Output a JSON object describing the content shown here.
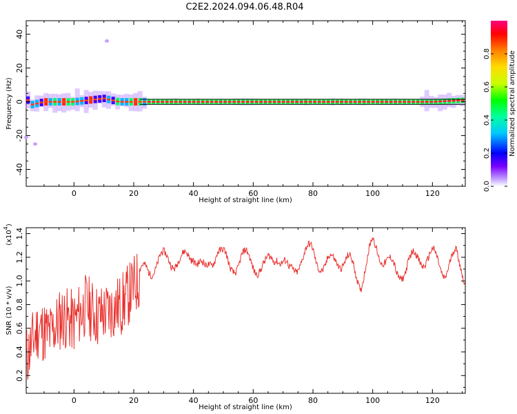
{
  "title": "C2E2.2024.094.06.48.R04",
  "colorbar": {
    "label": "Normalized spectral amplitude",
    "ticks": [
      "0.0",
      "0.2",
      "0.4",
      "0.6",
      "0.8"
    ],
    "tick_values": [
      0.0,
      0.2,
      0.4,
      0.6,
      0.8
    ],
    "range": [
      0,
      1
    ]
  },
  "chart_data": [
    {
      "type": "heatmap",
      "xlabel": "Height of straight line (km)",
      "ylabel": "Frequency (Hz)",
      "xlim": [
        -16,
        131
      ],
      "ylim": [
        -50,
        48
      ],
      "xticks": [
        0,
        20,
        40,
        60,
        80,
        100,
        120
      ],
      "yticks": [
        -40,
        -20,
        0,
        20,
        40
      ],
      "grid": false,
      "reference_lines_hz": [
        -1.5,
        1.5
      ],
      "ridge": {
        "description_values": "dominant frequency vs height",
        "x": [
          -15,
          -10,
          -5,
          0,
          5,
          10,
          15,
          20,
          30,
          60,
          90,
          120,
          131
        ],
        "frequency": [
          -2,
          0,
          0,
          0,
          1,
          2,
          0,
          0,
          0,
          0,
          0,
          0,
          1
        ]
      },
      "isolated_points": [
        {
          "x": 11,
          "frequency": 36
        },
        {
          "x": -16,
          "frequency": -21
        },
        {
          "x": -13,
          "frequency": -25
        }
      ]
    },
    {
      "type": "line",
      "xlabel": "Height of straight line (km)",
      "ylabel": "SNR (10 * v/v)",
      "ymultiplier": "(x10",
      "ymultiplier_exp": "4",
      "ymultiplier_close": ")",
      "xlim": [
        -16,
        131
      ],
      "ylim": [
        0.05,
        1.45
      ],
      "xticks": [
        0,
        20,
        40,
        60,
        80,
        100,
        120
      ],
      "yticks": [
        0.2,
        0.4,
        0.6,
        0.8,
        1.0,
        1.2,
        1.4
      ],
      "ytick_labels": [
        "0.2",
        "0.4",
        "0.6",
        "0.8",
        "1.0",
        "1.2",
        "1.4"
      ],
      "grid": false,
      "color": "#e8302c",
      "series": [
        {
          "x": [
            -16,
            -12,
            -8,
            -4,
            0,
            4,
            8,
            12,
            16,
            20,
            24,
            28,
            32,
            36,
            40,
            44,
            48,
            52,
            56,
            60,
            64,
            68,
            72,
            76,
            80,
            84,
            88,
            92,
            96,
            100,
            104,
            108,
            112,
            116,
            120,
            124,
            128,
            131
          ],
          "values": [
            0.35,
            0.6,
            0.55,
            0.7,
            0.65,
            0.8,
            0.7,
            0.75,
            0.8,
            0.95,
            1.1,
            1.15,
            1.2,
            1.15,
            1.25,
            1.05,
            1.3,
            1.1,
            1.2,
            1.15,
            1.1,
            1.25,
            1.05,
            1.2,
            1.25,
            1.1,
            1.2,
            1.15,
            1.0,
            1.3,
            1.2,
            1.05,
            1.15,
            1.2,
            1.2,
            1.1,
            1.2,
            1.05
          ]
        }
      ]
    }
  ]
}
